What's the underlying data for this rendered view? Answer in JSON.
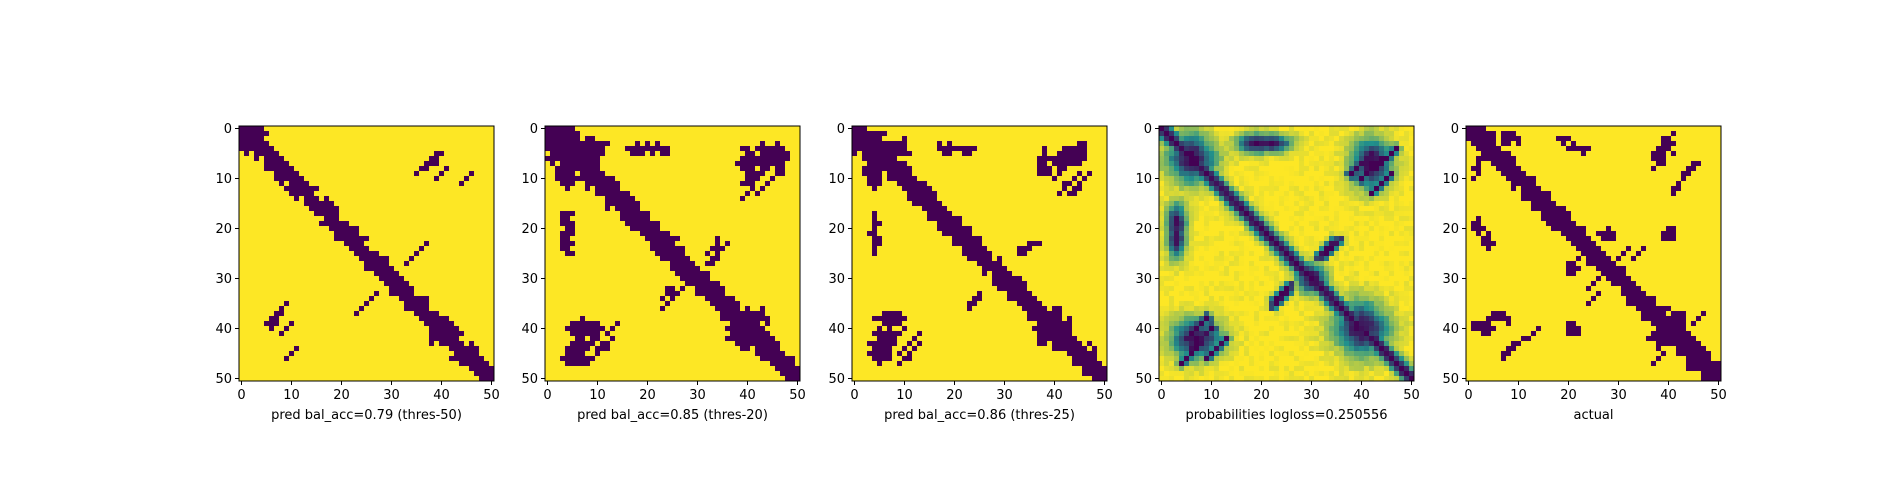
{
  "chart_data": [
    {
      "type": "heatmap",
      "xlabel": "pred bal_acc=0.79 (thres-50)",
      "x_ticks": [
        0,
        10,
        20,
        30,
        40,
        50
      ],
      "y_ticks": [
        0,
        10,
        20,
        30,
        40,
        50
      ],
      "xlim": [
        -0.5,
        50.5
      ],
      "ylim": [
        50.5,
        -0.5
      ],
      "binary": true,
      "diag_width": 2.2,
      "blobs": [
        {
          "x": 3,
          "y": 1,
          "rx": 2.5,
          "ry": 1.8,
          "rot": 0
        },
        {
          "x": 40,
          "y": 40,
          "rx": 3.5,
          "ry": 3,
          "rot": 0
        },
        {
          "x": 45,
          "y": 46,
          "rx": 3,
          "ry": 2,
          "rot": 0
        },
        {
          "x": 39,
          "y": 6,
          "rx": 1.5,
          "ry": 1.2,
          "rot": 0
        },
        {
          "x": 6,
          "y": 39,
          "rx": 1.5,
          "ry": 1.2,
          "rot": 0
        }
      ],
      "anti": [
        {
          "x": 37,
          "y": 7,
          "len": 5,
          "w": 0.7
        },
        {
          "x": 40,
          "y": 9,
          "len": 3,
          "w": 0.6
        },
        {
          "x": 36,
          "y": 24,
          "len": 3,
          "w": 0.6
        },
        {
          "x": 26,
          "y": 34,
          "len": 4,
          "w": 0.6
        },
        {
          "x": 7,
          "y": 38,
          "len": 4,
          "w": 0.7
        },
        {
          "x": 10,
          "y": 45,
          "len": 3,
          "w": 0.6
        }
      ]
    },
    {
      "type": "heatmap",
      "xlabel": "pred bal_acc=0.85 (thres-20)",
      "x_ticks": [
        0,
        10,
        20,
        30,
        40,
        50
      ],
      "y_ticks": [
        0,
        10,
        20,
        30,
        40,
        50
      ],
      "xlim": [
        -0.5,
        50.5
      ],
      "ylim": [
        50.5,
        -0.5
      ],
      "binary": true,
      "diag_width": 2.6,
      "blobs": [
        {
          "x": 3,
          "y": 4,
          "rx": 4,
          "ry": 3.5,
          "rot": 0
        },
        {
          "x": 9,
          "y": 4,
          "rx": 3.5,
          "ry": 3,
          "rot": 0
        },
        {
          "x": 40,
          "y": 40,
          "rx": 5,
          "ry": 4.5,
          "rot": 0
        },
        {
          "x": 30,
          "y": 30,
          "rx": 2.5,
          "ry": 2.5,
          "rot": 0
        },
        {
          "x": 46,
          "y": 46,
          "rx": 3,
          "ry": 3,
          "rot": 0
        },
        {
          "x": 22,
          "y": 4,
          "rx": 4,
          "ry": 1.5,
          "rot": 0
        },
        {
          "x": 4,
          "y": 19,
          "rx": 1.5,
          "ry": 3.5,
          "rot": 0
        },
        {
          "x": 46,
          "y": 6,
          "rx": 2.5,
          "ry": 3,
          "rot": 0
        },
        {
          "x": 6,
          "y": 44,
          "rx": 3,
          "ry": 3,
          "rot": 0
        },
        {
          "x": 40,
          "y": 7,
          "rx": 2,
          "ry": 4,
          "rot": 0
        }
      ],
      "anti": [
        {
          "x": 42,
          "y": 6,
          "len": 7,
          "w": 0.8
        },
        {
          "x": 44,
          "y": 11,
          "len": 6,
          "w": 0.7
        },
        {
          "x": 33,
          "y": 24,
          "len": 4,
          "w": 0.7
        },
        {
          "x": 25,
          "y": 34,
          "len": 5,
          "w": 0.7
        },
        {
          "x": 9,
          "y": 42,
          "len": 7,
          "w": 0.8
        },
        {
          "x": 5,
          "y": 44,
          "len": 6,
          "w": 0.7
        },
        {
          "x": 13,
          "y": 40,
          "len": 4,
          "w": 0.6
        }
      ]
    },
    {
      "type": "heatmap",
      "xlabel": "pred bal_acc=0.86 (thres-25)",
      "x_ticks": [
        0,
        10,
        20,
        30,
        40,
        50
      ],
      "y_ticks": [
        0,
        10,
        20,
        30,
        40,
        50
      ],
      "xlim": [
        -0.5,
        50.5
      ],
      "ylim": [
        50.5,
        -0.5
      ],
      "binary": true,
      "diag_width": 2.4,
      "blobs": [
        {
          "x": 3,
          "y": 4,
          "rx": 3.5,
          "ry": 3,
          "rot": 0
        },
        {
          "x": 9,
          "y": 4,
          "rx": 3,
          "ry": 2.5,
          "rot": 0
        },
        {
          "x": 40,
          "y": 40,
          "rx": 4.5,
          "ry": 4,
          "rot": 0
        },
        {
          "x": 30,
          "y": 30,
          "rx": 2,
          "ry": 2,
          "rot": 0
        },
        {
          "x": 46,
          "y": 46,
          "rx": 3,
          "ry": 2.5,
          "rot": 0
        },
        {
          "x": 22,
          "y": 4,
          "rx": 3.5,
          "ry": 1.2,
          "rot": 0
        },
        {
          "x": 4,
          "y": 19,
          "rx": 1.2,
          "ry": 3,
          "rot": 0
        },
        {
          "x": 45,
          "y": 5,
          "rx": 2.5,
          "ry": 2.5,
          "rot": 0
        },
        {
          "x": 6,
          "y": 42,
          "rx": 3,
          "ry": 2.5,
          "rot": 0
        },
        {
          "x": 38,
          "y": 7,
          "rx": 1.5,
          "ry": 3,
          "rot": 0
        }
      ],
      "anti": [
        {
          "x": 40,
          "y": 7,
          "len": 6,
          "w": 0.8
        },
        {
          "x": 43,
          "y": 11,
          "len": 5,
          "w": 0.7
        },
        {
          "x": 35,
          "y": 24,
          "len": 4,
          "w": 0.7
        },
        {
          "x": 24,
          "y": 34,
          "len": 4,
          "w": 0.7
        },
        {
          "x": 8,
          "y": 42,
          "len": 6,
          "w": 0.8
        },
        {
          "x": 11,
          "y": 45,
          "len": 5,
          "w": 0.7
        }
      ]
    },
    {
      "type": "heatmap",
      "xlabel": "probabilities logloss=0.250556",
      "x_ticks": [
        0,
        10,
        20,
        30,
        40,
        50
      ],
      "y_ticks": [
        0,
        10,
        20,
        30,
        40,
        50
      ],
      "xlim": [
        -0.5,
        50.5
      ],
      "ylim": [
        50.5,
        -0.5
      ],
      "binary": false,
      "diag_width": 1.6,
      "blobs": [
        {
          "x": 6,
          "y": 6,
          "rx": 5,
          "ry": 4,
          "rot": 0
        },
        {
          "x": 40,
          "y": 40,
          "rx": 5.5,
          "ry": 4.5,
          "rot": 0
        },
        {
          "x": 22,
          "y": 3,
          "rx": 4,
          "ry": 1.8,
          "rot": 0
        },
        {
          "x": 3,
          "y": 19,
          "rx": 2,
          "ry": 4,
          "rot": 0
        },
        {
          "x": 42,
          "y": 7,
          "rx": 4,
          "ry": 5,
          "rot": 0
        },
        {
          "x": 7,
          "y": 42,
          "rx": 5,
          "ry": 4,
          "rot": 0
        },
        {
          "x": 30,
          "y": 30,
          "rx": 3,
          "ry": 3,
          "rot": 0
        }
      ],
      "anti": [
        {
          "x": 40,
          "y": 7,
          "len": 7,
          "w": 1.1
        },
        {
          "x": 44,
          "y": 11,
          "len": 6,
          "w": 0.9
        },
        {
          "x": 33,
          "y": 24,
          "len": 5,
          "w": 0.9
        },
        {
          "x": 24,
          "y": 34,
          "len": 5,
          "w": 0.9
        },
        {
          "x": 8,
          "y": 42,
          "len": 7,
          "w": 1.1
        },
        {
          "x": 6,
          "y": 45,
          "len": 6,
          "w": 0.9
        }
      ]
    },
    {
      "type": "heatmap",
      "xlabel": "actual",
      "x_ticks": [
        0,
        10,
        20,
        30,
        40,
        50
      ],
      "y_ticks": [
        0,
        10,
        20,
        30,
        40,
        50
      ],
      "xlim": [
        -0.5,
        50.5
      ],
      "ylim": [
        50.5,
        -0.5
      ],
      "binary": true,
      "diag_width": 2.3,
      "blobs": [
        {
          "x": 3,
          "y": 3,
          "rx": 3,
          "ry": 2.5,
          "rot": 0
        },
        {
          "x": 8,
          "y": 2,
          "rx": 2.5,
          "ry": 1.5,
          "rot": 0
        },
        {
          "x": 17,
          "y": 18,
          "rx": 2.2,
          "ry": 2.2,
          "rot": 0
        },
        {
          "x": 40,
          "y": 41,
          "rx": 4.5,
          "ry": 3.5,
          "rot": 0
        },
        {
          "x": 46,
          "y": 47,
          "rx": 3,
          "ry": 2,
          "rot": 0
        },
        {
          "x": 38,
          "y": 6,
          "rx": 1.5,
          "ry": 2.5,
          "rot": 0
        },
        {
          "x": 28,
          "y": 21,
          "rx": 2,
          "ry": 2,
          "rot": 0
        },
        {
          "x": 22,
          "y": 4,
          "rx": 3,
          "ry": 1.2,
          "rot": 0
        },
        {
          "x": 2,
          "y": 19,
          "rx": 1.2,
          "ry": 2.5,
          "rot": 0
        },
        {
          "x": 3,
          "y": 40,
          "rx": 2.5,
          "ry": 1.5,
          "rot": 0
        },
        {
          "x": 21,
          "y": 40,
          "rx": 1.8,
          "ry": 1.5,
          "rot": 0
        }
      ],
      "anti": [
        {
          "x": 44,
          "y": 8,
          "len": 3,
          "w": 0.6
        },
        {
          "x": 41,
          "y": 13,
          "len": 2,
          "w": 0.5
        },
        {
          "x": 31,
          "y": 25,
          "len": 3,
          "w": 0.6
        },
        {
          "x": 25,
          "y": 34,
          "len": 3,
          "w": 0.6
        },
        {
          "x": 11,
          "y": 42,
          "len": 2,
          "w": 0.6
        },
        {
          "x": 8,
          "y": 45,
          "len": 2,
          "w": 0.6
        },
        {
          "x": 46,
          "y": 38,
          "len": 3,
          "w": 0.6
        }
      ]
    }
  ],
  "colors": {
    "low": "#440154",
    "mid": "#21918c",
    "high": "#fde725"
  }
}
